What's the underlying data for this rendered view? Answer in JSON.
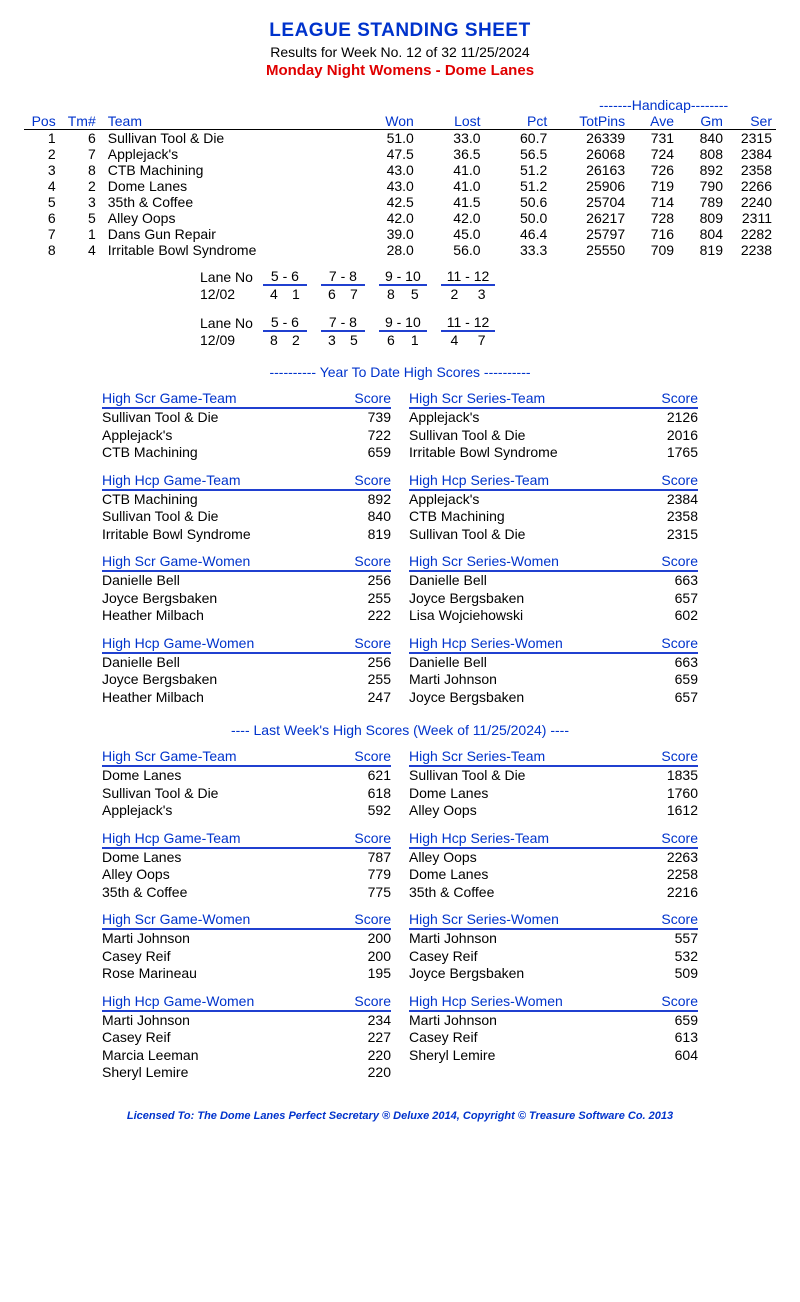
{
  "header": {
    "title": "LEAGUE STANDING SHEET",
    "subtitle": "Results for Week No. 12 of 32    11/25/2024",
    "league": "Monday Night Womens - Dome Lanes"
  },
  "standings": {
    "handicap_label": "-------Handicap--------",
    "cols": [
      "Pos",
      "Tm#",
      "Team",
      "Won",
      "Lost",
      "Pct",
      "TotPins",
      "Ave",
      "Gm",
      "Ser"
    ],
    "rows": [
      [
        "1",
        "6",
        "Sullivan Tool & Die",
        "51.0",
        "33.0",
        "60.7",
        "26339",
        "731",
        "840",
        "2315"
      ],
      [
        "2",
        "7",
        "Applejack's",
        "47.5",
        "36.5",
        "56.5",
        "26068",
        "724",
        "808",
        "2384"
      ],
      [
        "3",
        "8",
        "CTB Machining",
        "43.0",
        "41.0",
        "51.2",
        "26163",
        "726",
        "892",
        "2358"
      ],
      [
        "4",
        "2",
        "Dome Lanes",
        "43.0",
        "41.0",
        "51.2",
        "25906",
        "719",
        "790",
        "2266"
      ],
      [
        "5",
        "3",
        "35th & Coffee",
        "42.5",
        "41.5",
        "50.6",
        "25704",
        "714",
        "789",
        "2240"
      ],
      [
        "6",
        "5",
        "Alley Oops",
        "42.0",
        "42.0",
        "50.0",
        "26217",
        "728",
        "809",
        "2311"
      ],
      [
        "7",
        "1",
        "Dans Gun Repair",
        "39.0",
        "45.0",
        "46.4",
        "25797",
        "716",
        "804",
        "2282"
      ],
      [
        "8",
        "4",
        "Irritable Bowl Syndrome",
        "28.0",
        "56.0",
        "33.3",
        "25550",
        "709",
        "819",
        "2238"
      ]
    ]
  },
  "lanes": [
    {
      "label": "Lane No",
      "date": "12/02",
      "pairs": [
        "5 -  6",
        "7 -  8",
        "9 - 10",
        "11 - 12"
      ],
      "vals": [
        [
          "4",
          "1"
        ],
        [
          "6",
          "7"
        ],
        [
          "8",
          "5"
        ],
        [
          "2",
          "3"
        ]
      ]
    },
    {
      "label": "Lane No",
      "date": "12/09",
      "pairs": [
        "5 -  6",
        "7 -  8",
        "9 - 10",
        "11 - 12"
      ],
      "vals": [
        [
          "8",
          "2"
        ],
        [
          "3",
          "5"
        ],
        [
          "6",
          "1"
        ],
        [
          "4",
          "7"
        ]
      ]
    }
  ],
  "ytd_heading": "----------  Year To Date High Scores  ----------",
  "lw_heading": "----   Last Week's High Scores   (Week of 11/25/2024)   ----",
  "score_label": "Score",
  "ytd": [
    {
      "left": {
        "title": "High Scr Game-Team",
        "rows": [
          [
            "Sullivan Tool & Die",
            "739"
          ],
          [
            "Applejack's",
            "722"
          ],
          [
            "CTB Machining",
            "659"
          ]
        ]
      },
      "right": {
        "title": "High Scr Series-Team",
        "rows": [
          [
            "Applejack's",
            "2126"
          ],
          [
            "Sullivan Tool & Die",
            "2016"
          ],
          [
            "Irritable Bowl Syndrome",
            "1765"
          ]
        ]
      }
    },
    {
      "left": {
        "title": "High Hcp Game-Team",
        "rows": [
          [
            "CTB Machining",
            "892"
          ],
          [
            "Sullivan Tool & Die",
            "840"
          ],
          [
            "Irritable Bowl Syndrome",
            "819"
          ]
        ]
      },
      "right": {
        "title": "High Hcp Series-Team",
        "rows": [
          [
            "Applejack's",
            "2384"
          ],
          [
            "CTB Machining",
            "2358"
          ],
          [
            "Sullivan Tool & Die",
            "2315"
          ]
        ]
      }
    },
    {
      "left": {
        "title": "High Scr Game-Women",
        "rows": [
          [
            "Danielle Bell",
            "256"
          ],
          [
            "Joyce Bergsbaken",
            "255"
          ],
          [
            "Heather Milbach",
            "222"
          ]
        ]
      },
      "right": {
        "title": "High Scr Series-Women",
        "rows": [
          [
            "Danielle Bell",
            "663"
          ],
          [
            "Joyce Bergsbaken",
            "657"
          ],
          [
            "Lisa Wojciehowski",
            "602"
          ]
        ]
      }
    },
    {
      "left": {
        "title": "High Hcp Game-Women",
        "rows": [
          [
            "Danielle Bell",
            "256"
          ],
          [
            "Joyce Bergsbaken",
            "255"
          ],
          [
            "Heather Milbach",
            "247"
          ]
        ]
      },
      "right": {
        "title": "High Hcp Series-Women",
        "rows": [
          [
            "Danielle Bell",
            "663"
          ],
          [
            "Marti Johnson",
            "659"
          ],
          [
            "Joyce Bergsbaken",
            "657"
          ]
        ]
      }
    }
  ],
  "lw": [
    {
      "left": {
        "title": "High Scr Game-Team",
        "rows": [
          [
            "Dome Lanes",
            "621"
          ],
          [
            "Sullivan Tool & Die",
            "618"
          ],
          [
            "Applejack's",
            "592"
          ]
        ]
      },
      "right": {
        "title": "High Scr Series-Team",
        "rows": [
          [
            "Sullivan Tool & Die",
            "1835"
          ],
          [
            "Dome Lanes",
            "1760"
          ],
          [
            "Alley Oops",
            "1612"
          ]
        ]
      }
    },
    {
      "left": {
        "title": "High Hcp Game-Team",
        "rows": [
          [
            "Dome Lanes",
            "787"
          ],
          [
            "Alley Oops",
            "779"
          ],
          [
            "35th & Coffee",
            "775"
          ]
        ]
      },
      "right": {
        "title": "High Hcp Series-Team",
        "rows": [
          [
            "Alley Oops",
            "2263"
          ],
          [
            "Dome Lanes",
            "2258"
          ],
          [
            "35th & Coffee",
            "2216"
          ]
        ]
      }
    },
    {
      "left": {
        "title": "High Scr Game-Women",
        "rows": [
          [
            "Marti Johnson",
            "200"
          ],
          [
            "Casey Reif",
            "200"
          ],
          [
            "Rose Marineau",
            "195"
          ]
        ]
      },
      "right": {
        "title": "High Scr Series-Women",
        "rows": [
          [
            "Marti Johnson",
            "557"
          ],
          [
            "Casey Reif",
            "532"
          ],
          [
            "Joyce Bergsbaken",
            "509"
          ]
        ]
      }
    },
    {
      "left": {
        "title": "High Hcp Game-Women",
        "rows": [
          [
            "Marti Johnson",
            "234"
          ],
          [
            "Casey Reif",
            "227"
          ],
          [
            "Marcia Leeman",
            "220"
          ],
          [
            "Sheryl Lemire",
            "220"
          ]
        ]
      },
      "right": {
        "title": "High Hcp Series-Women",
        "rows": [
          [
            "Marti Johnson",
            "659"
          ],
          [
            "Casey Reif",
            "613"
          ],
          [
            "Sheryl Lemire",
            "604"
          ]
        ]
      }
    }
  ],
  "footer": "Licensed To: The Dome Lanes     Perfect Secretary ® Deluxe  2014, Copyright © Treasure Software Co. 2013"
}
